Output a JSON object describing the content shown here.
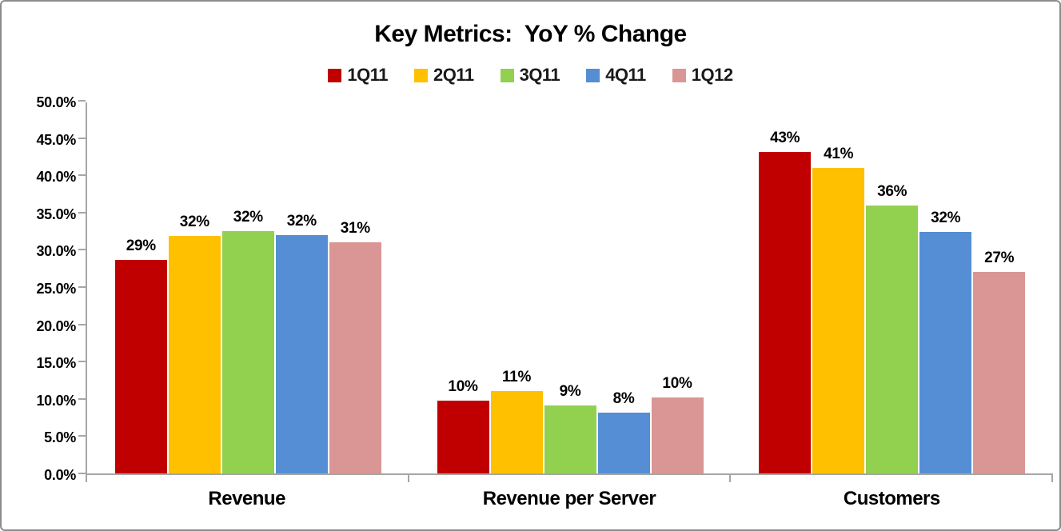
{
  "frame": {
    "background": "#FFFFFF",
    "border_color": "#8C8C8C",
    "axis_color": "#A6A6A6"
  },
  "chart_data": {
    "type": "bar",
    "title": "Key Metrics:  YoY % Change",
    "xlabel": "",
    "ylabel": "",
    "categories": [
      "Revenue",
      "Revenue per Server",
      "Customers"
    ],
    "series": [
      {
        "name": "1Q11",
        "color": "#C00000",
        "values": [
          28.7,
          9.8,
          43.1
        ],
        "labels": [
          "29%",
          "10%",
          "43%"
        ]
      },
      {
        "name": "2Q11",
        "color": "#FFC000",
        "values": [
          31.9,
          11.1,
          41.0
        ],
        "labels": [
          "32%",
          "11%",
          "41%"
        ]
      },
      {
        "name": "3Q11",
        "color": "#92D050",
        "values": [
          32.5,
          9.1,
          35.9
        ],
        "labels": [
          "32%",
          "9%",
          "36%"
        ]
      },
      {
        "name": "4Q11",
        "color": "#558ED5",
        "values": [
          32.0,
          8.2,
          32.4
        ],
        "labels": [
          "32%",
          "8%",
          "32%"
        ]
      },
      {
        "name": "1Q12",
        "color": "#D99694",
        "values": [
          31.0,
          10.2,
          27.0
        ],
        "labels": [
          "31%",
          "10%",
          "27%"
        ]
      }
    ],
    "ylim": [
      0,
      50
    ],
    "ytick_step": 5,
    "ytick_labels": [
      "0.0%",
      "5.0%",
      "10.0%",
      "15.0%",
      "20.0%",
      "25.0%",
      "30.0%",
      "35.0%",
      "40.0%",
      "45.0%",
      "50.0%"
    ],
    "grid": "off",
    "legend_position": "top",
    "data_labels": "outside-end"
  }
}
